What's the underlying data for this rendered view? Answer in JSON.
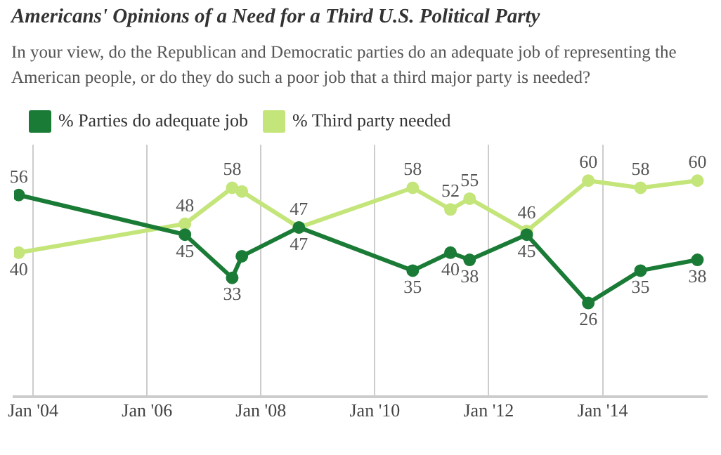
{
  "chart_data": {
    "type": "line",
    "title": "Americans' Opinions of a Need for a Third U.S. Political Party",
    "subtitle": "In your view, do the Republican and Democratic parties do an adequate job of representing the American people, or do they do such a poor job that a third major party is needed?",
    "x": [
      "2003-10",
      "2006-09",
      "2007-07",
      "2007-09",
      "2008-09",
      "2010-09",
      "2011-05",
      "2011-09",
      "2012-09",
      "2013-10",
      "2014-09",
      "2015-09"
    ],
    "series": [
      {
        "name": "% Parties do adequate job",
        "color": "#1a7b36",
        "values": [
          56,
          45,
          33,
          39,
          47,
          35,
          40,
          38,
          45,
          26,
          35,
          38
        ],
        "value_labels": [
          "56",
          "45",
          "33",
          null,
          "47",
          "35",
          "40",
          "38",
          "45",
          "26",
          "35",
          "38"
        ]
      },
      {
        "name": "% Third party needed",
        "color": "#c4e57a",
        "values": [
          40,
          48,
          58,
          57,
          47,
          58,
          52,
          55,
          46,
          60,
          58,
          60
        ],
        "value_labels": [
          "40",
          "48",
          "58",
          null,
          "47",
          "58",
          "52",
          "55",
          "46",
          "60",
          "58",
          "60"
        ]
      }
    ],
    "xlim": [
      "2003-09",
      "2015-11"
    ],
    "xticks": [
      {
        "value": "2004-01",
        "label": "Jan '04"
      },
      {
        "value": "2006-01",
        "label": "Jan '06"
      },
      {
        "value": "2008-01",
        "label": "Jan '08"
      },
      {
        "value": "2010-01",
        "label": "Jan '10"
      },
      {
        "value": "2012-01",
        "label": "Jan '12"
      },
      {
        "value": "2014-01",
        "label": "Jan '14"
      }
    ],
    "ylim": [
      0,
      70
    ],
    "grid": "x",
    "tick_labels": "x",
    "legend": "top left",
    "marker": "circle",
    "line_style": "solid"
  }
}
